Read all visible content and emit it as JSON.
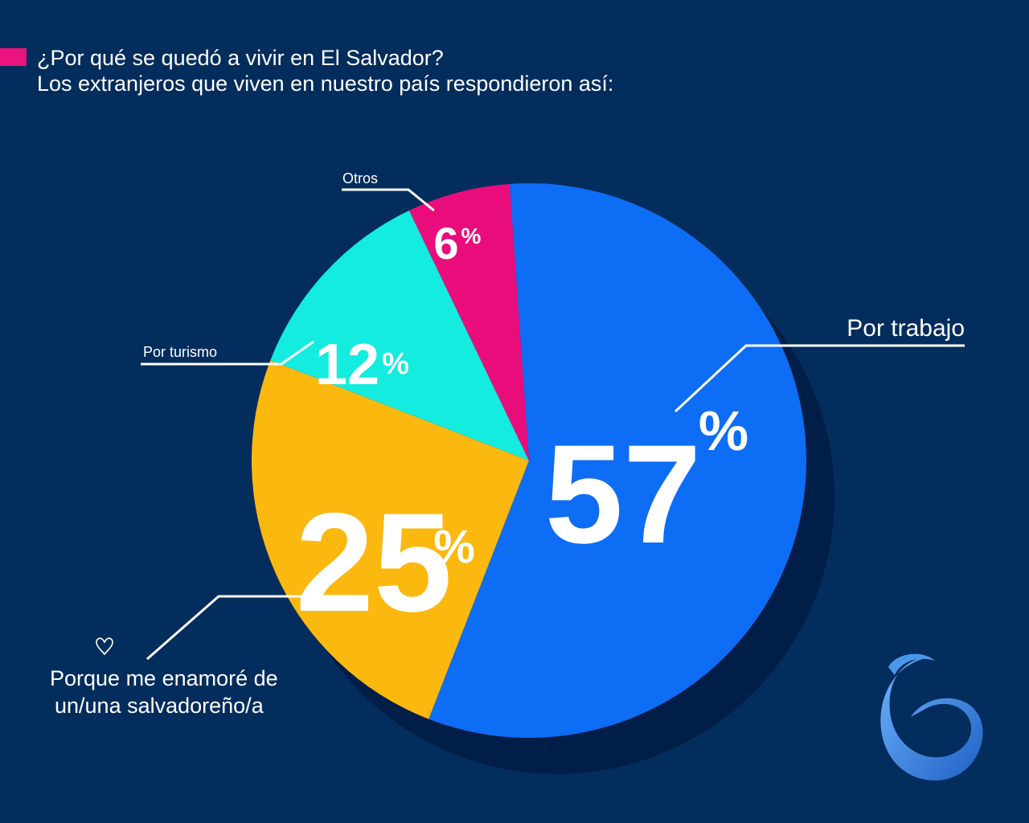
{
  "header": {
    "title": "¿Por qué se quedó a vivir en El Salvador?",
    "subtitle": "Los extranjeros que viven en nuestro país respondieron así:"
  },
  "colors": {
    "background": "#032d5c",
    "accent": "#e9157c",
    "trabajo": "#0e6df5",
    "amor": "#fbb80f",
    "turismo": "#13ecde",
    "otros": "#e90d7b",
    "shadow": "#001e47",
    "logo": "#2f7fe0"
  },
  "chart_data": {
    "type": "pie",
    "title": "¿Por qué se quedó a vivir en El Salvador?",
    "subtitle": "Los extranjeros que viven en nuestro país respondieron así:",
    "unit": "%",
    "slices": [
      {
        "label": "Por trabajo",
        "value": 57,
        "display": "57",
        "color": "#0e6df5"
      },
      {
        "label": "Porque me enamoré de un/una salvadoreño/a",
        "value": 25,
        "display": "25",
        "color": "#fbb80f"
      },
      {
        "label": "Por turismo",
        "value": 12,
        "display": "12",
        "color": "#13ecde"
      },
      {
        "label": "Otros",
        "value": 6,
        "display": "6",
        "color": "#e90d7b"
      }
    ]
  },
  "labels": {
    "trabajo": "Por trabajo",
    "amor_line1": "Porque me enamoré de",
    "amor_line2": "un/una salvadoreño/a",
    "turismo": "Por turismo",
    "otros": "Otros",
    "percent_sign": "%"
  },
  "icons": {
    "heart": "heart-icon",
    "logo": "brand-logo"
  }
}
